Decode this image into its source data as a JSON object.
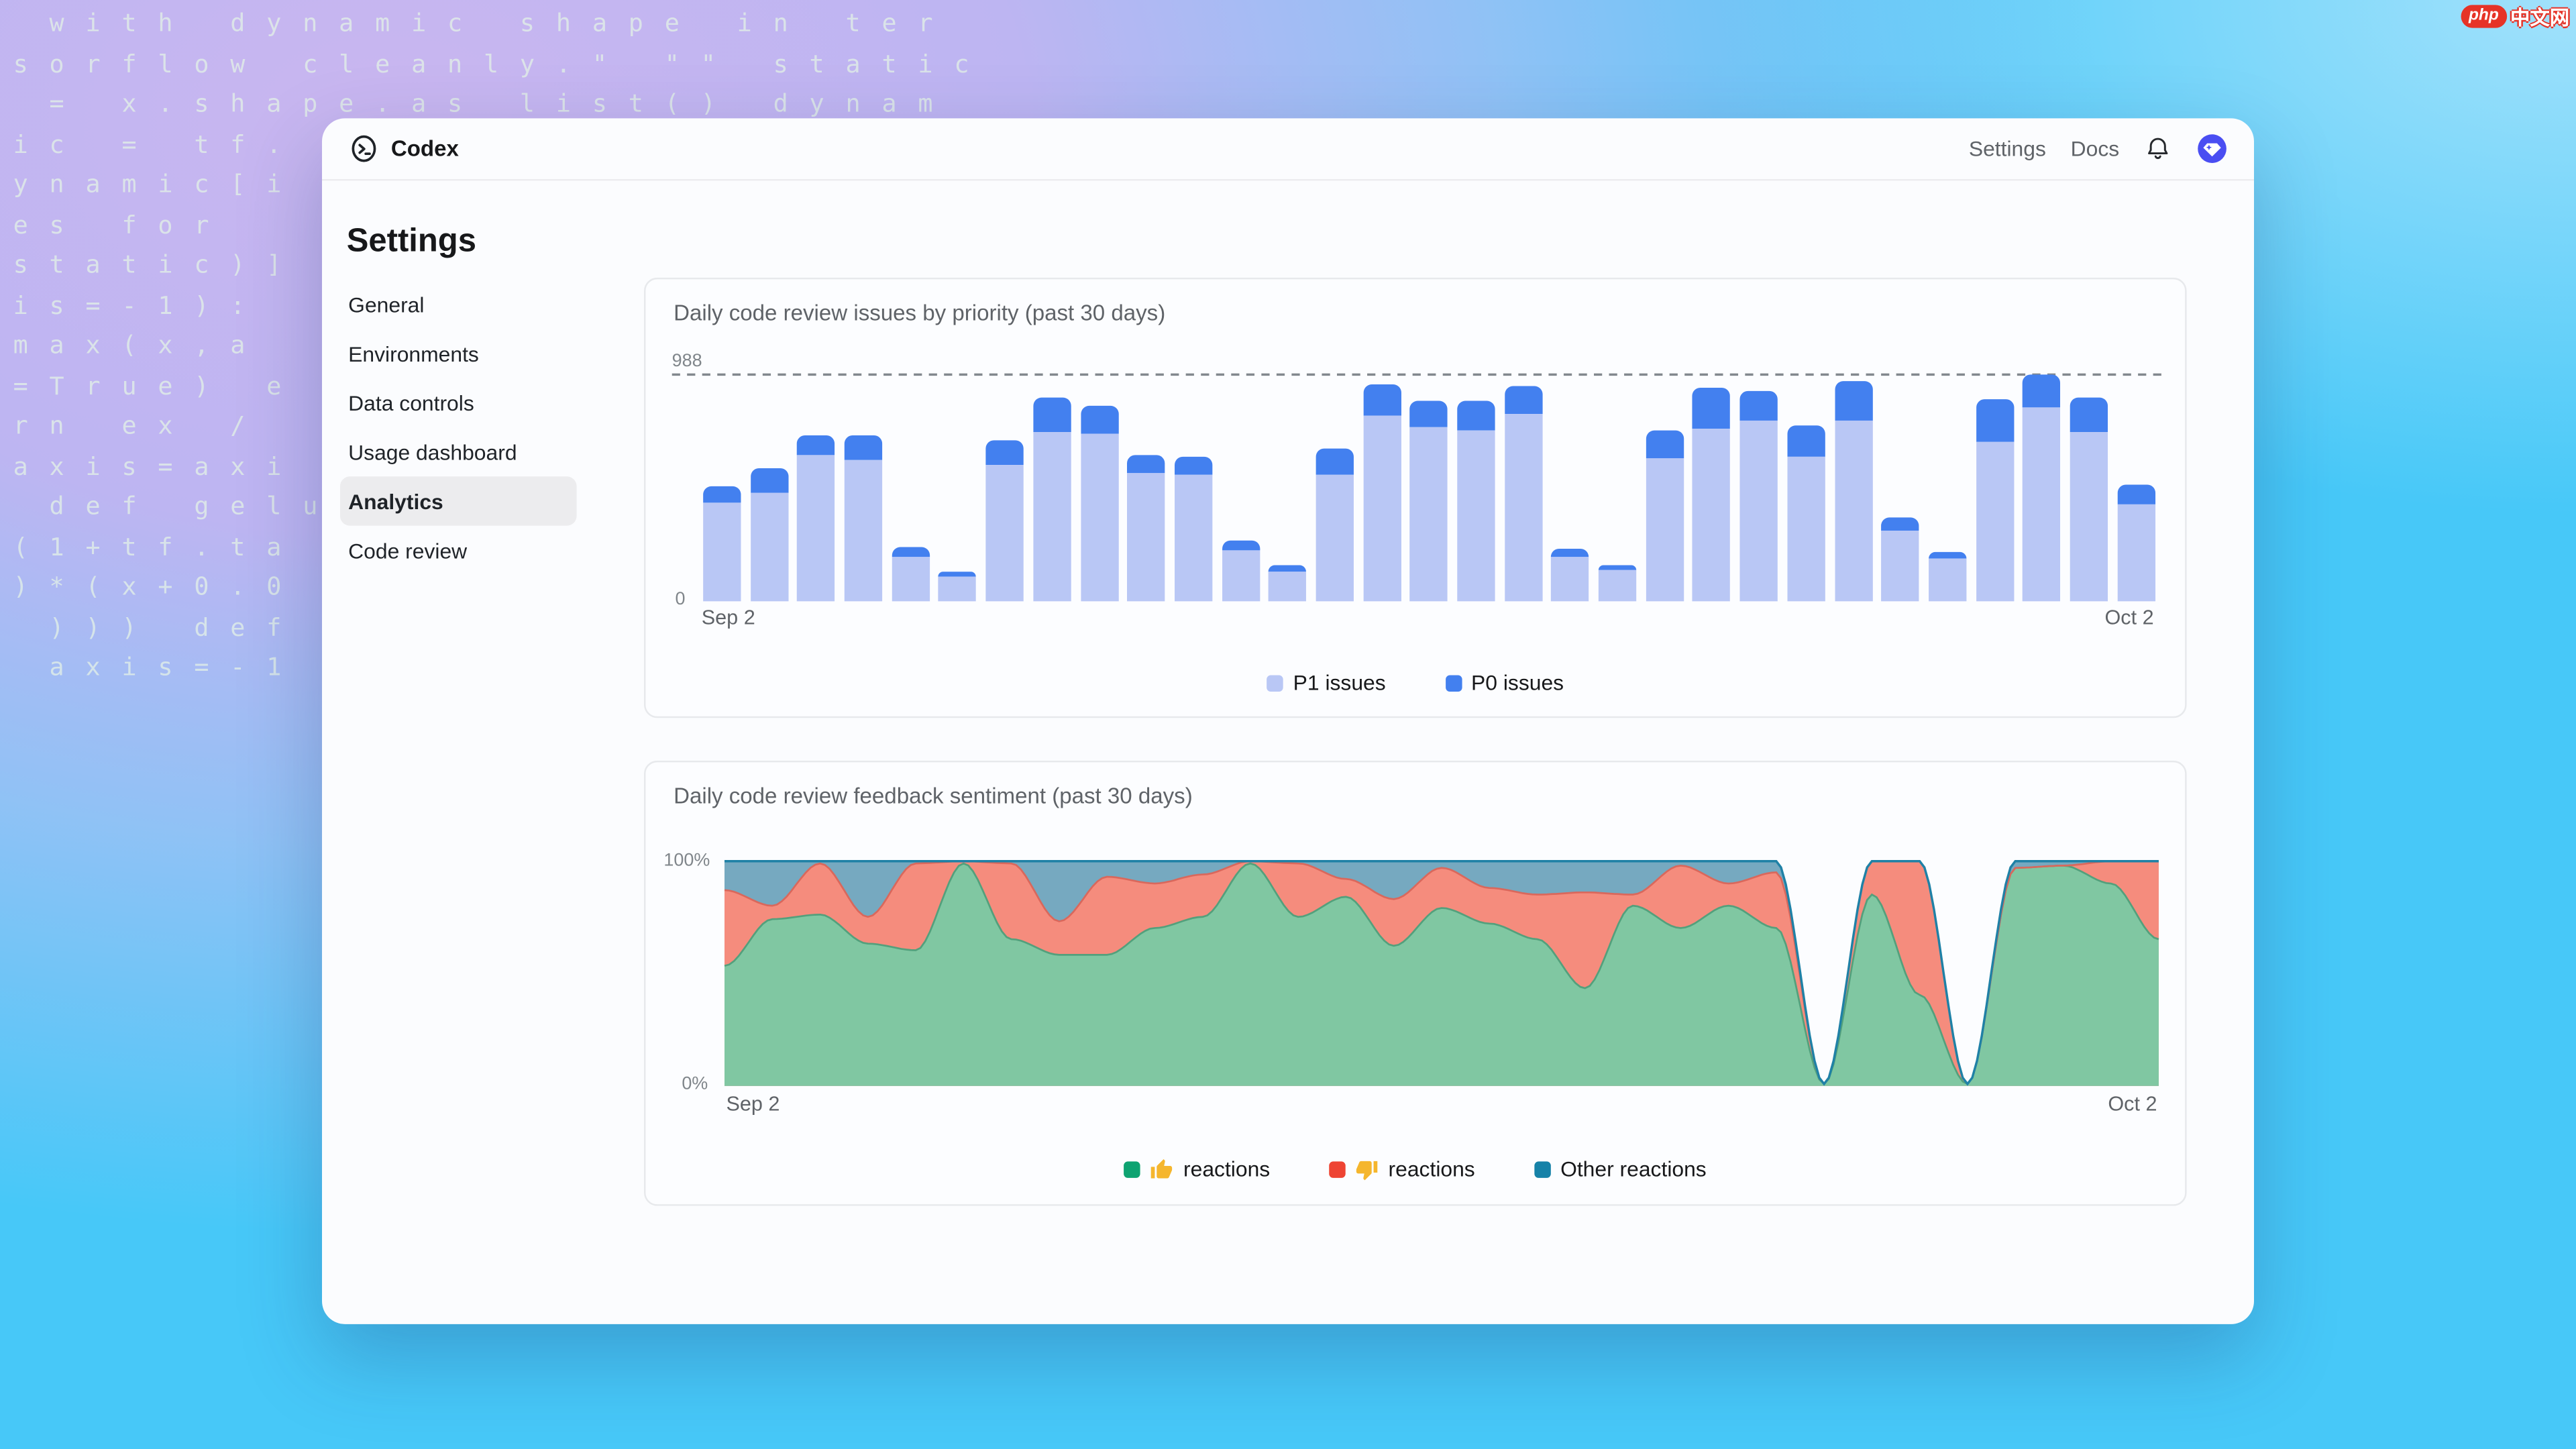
{
  "watermark": {
    "logo": "php",
    "text": "中文网"
  },
  "background_code_lines": [
    " with dynamic shape in ter",
    "sorflow cleanly.\" \"\" static",
    " = x.shape.as list() dynam",
    "ic = tf.",
    "ynamic[i",
    "es for",
    "static)]",
    "is=-1):",
    "max(x,a",
    "=True) e",
    "rn ex /",
    "axis=axi",
    " def gelu",
    "(1+tf.ta",
    ")*(x+0.0",
    " ))) def",
    " axis=-1"
  ],
  "header": {
    "brand": "Codex",
    "nav": [
      {
        "label": "Settings"
      },
      {
        "label": "Docs"
      }
    ]
  },
  "sidebar": {
    "title": "Settings",
    "items": [
      {
        "label": "General",
        "active": false
      },
      {
        "label": "Environments",
        "active": false
      },
      {
        "label": "Data controls",
        "active": false
      },
      {
        "label": "Usage dashboard",
        "active": false
      },
      {
        "label": "Analytics",
        "active": true
      },
      {
        "label": "Code review",
        "active": false
      }
    ]
  },
  "chart_data": [
    {
      "type": "bar",
      "stacked": true,
      "title": "Daily code review issues by priority (past 30 days)",
      "num_days": 31,
      "ylim": [
        0,
        988
      ],
      "y_axis": {
        "max_label": "988",
        "min_label": "0"
      },
      "x_axis": {
        "start_label": "Sep 2",
        "end_label": "Oct 2"
      },
      "grid": "single dashed max line",
      "legend_position": "bottom-center",
      "series": [
        {
          "name": "P1 issues",
          "color": "#b9c7f5",
          "values": [
            428,
            475,
            635,
            619,
            197,
            107,
            593,
            739,
            734,
            559,
            552,
            222,
            131,
            555,
            809,
            757,
            747,
            814,
            193,
            134,
            621,
            754,
            790,
            628,
            787,
            307,
            190,
            695,
            846,
            738,
            423
          ]
        },
        {
          "name": "P0 issues",
          "color": "#4380ef",
          "values": [
            74,
            106,
            88,
            102,
            39,
            22,
            108,
            151,
            122,
            81,
            77,
            40,
            25,
            110,
            136,
            118,
            130,
            126,
            33,
            26,
            121,
            176,
            128,
            139,
            176,
            56,
            28,
            185,
            142,
            150,
            89
          ]
        }
      ]
    },
    {
      "type": "area",
      "stacked": true,
      "unit": "%",
      "title": "Daily code review feedback sentiment (past 30 days)",
      "num_days": 31,
      "ylim": [
        0,
        100
      ],
      "y_axis": {
        "max_label": "100%",
        "min_label": "0%"
      },
      "x_axis": {
        "start_label": "Sep 2",
        "end_label": "Oct 2"
      },
      "legend_position": "bottom-center",
      "series": [
        {
          "name": "thumbs-up reactions",
          "legend_emoji": "thumbs-up",
          "legend_label": "reactions",
          "fill": "#80c7a2",
          "stroke": "#53a07c",
          "legend_color": "#0ea371",
          "values": [
            53,
            74,
            76,
            63,
            60,
            99,
            65,
            58,
            58,
            70,
            75,
            99,
            75,
            84,
            62,
            79,
            72,
            65,
            43,
            80,
            70,
            80,
            70,
            0,
            85,
            40,
            0,
            97,
            98,
            90,
            65
          ]
        },
        {
          "name": "thumbs-down reactions",
          "legend_emoji": "thumbs-down",
          "legend_label": "reactions",
          "fill": "#f58c7d",
          "stroke": "#d9685c",
          "legend_color": "#ee4433",
          "values": [
            34,
            6,
            23,
            12,
            39,
            1,
            34,
            15,
            35,
            20,
            19,
            1,
            24,
            8,
            21,
            18,
            16,
            20,
            43,
            5,
            28,
            10,
            25,
            0,
            15,
            60,
            0,
            0,
            0,
            10,
            35
          ]
        },
        {
          "name": "Other reactions",
          "legend_label": "Other reactions",
          "fill": "#76a9c0",
          "stroke": "#1f81a6",
          "legend_color": "#1682a8",
          "values": [
            13,
            20,
            1,
            25,
            1,
            0,
            1,
            27,
            7,
            10,
            6,
            0,
            1,
            8,
            17,
            3,
            12,
            15,
            14,
            15,
            2,
            10,
            5,
            0,
            0,
            0,
            0,
            3,
            2,
            0,
            0
          ]
        }
      ]
    }
  ]
}
